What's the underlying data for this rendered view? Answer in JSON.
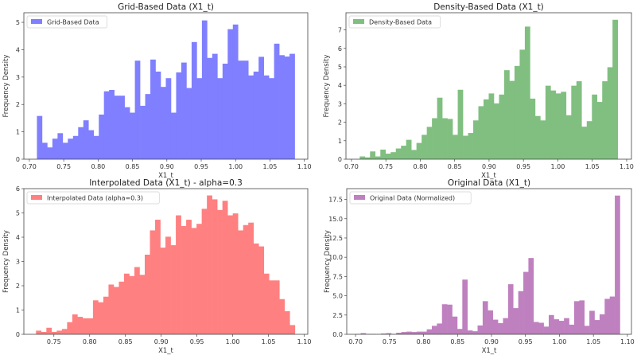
{
  "chart_data": [
    {
      "type": "bar",
      "title": "Grid-Based Data (X1_t)",
      "xlabel": "X1_t",
      "ylabel": "Frequency Density",
      "legend": "Grid-Based Data",
      "legend_placement": "top-left",
      "color": "#7f7fff",
      "bin_range": [
        0.711,
        1.086
      ],
      "xlim": [
        0.692,
        1.105
      ],
      "ylim": [
        0,
        5.35
      ],
      "xticks": [
        "0.70",
        "0.75",
        "0.80",
        "0.85",
        "0.90",
        "0.95",
        "1.00",
        "1.05",
        "1.10"
      ],
      "yticks": [
        "0",
        "1",
        "2",
        "3",
        "4",
        "5"
      ],
      "values": [
        1.58,
        0.6,
        0.43,
        0.75,
        0.95,
        0.6,
        0.75,
        0.85,
        1.17,
        1.42,
        1.06,
        0.85,
        1.63,
        2.48,
        2.53,
        2.32,
        2.32,
        1.9,
        1.7,
        3.6,
        1.95,
        2.38,
        3.64,
        3.2,
        2.64,
        2.96,
        1.7,
        3.17,
        3.53,
        2.6,
        4.28,
        2.96,
        5.07,
        3.7,
        3.85,
        2.96,
        3.49,
        4.75,
        4.92,
        3.6,
        3.6,
        3.06,
        3.2,
        3.74,
        3.06,
        2.96,
        4.22,
        3.8,
        3.75,
        3.85
      ]
    },
    {
      "type": "bar",
      "title": "Density-Based Data (X1_t)",
      "xlabel": "X1_t",
      "ylabel": "Frequency Density",
      "legend": "Density-Based Data",
      "legend_placement": "top-left",
      "color": "#80bf80",
      "bin_range": [
        0.712,
        1.087
      ],
      "xlim": [
        0.692,
        1.107
      ],
      "ylim": [
        0,
        7.93
      ],
      "xticks": [
        "0.70",
        "0.75",
        "0.80",
        "0.85",
        "0.90",
        "0.95",
        "1.00",
        "1.05",
        "1.10"
      ],
      "yticks": [
        "0",
        "1",
        "2",
        "3",
        "4",
        "5",
        "6",
        "7"
      ],
      "values": [
        0.15,
        0.1,
        0.42,
        0.15,
        0.52,
        0.3,
        0.38,
        0.58,
        0.73,
        1.05,
        0.5,
        0.88,
        1.32,
        1.75,
        2.22,
        3.33,
        2.22,
        2.18,
        1.32,
        3.76,
        1.27,
        1.42,
        2.1,
        2.87,
        3.24,
        3.56,
        3.02,
        3.5,
        4.82,
        4.24,
        5.05,
        5.93,
        7.18,
        3.28,
        2.34,
        2.1,
        3.98,
        3.72,
        3.56,
        3.65,
        2.38,
        3.98,
        4.22,
        1.76,
        2.06,
        3.5,
        3.1,
        4.22,
        4.98,
        7.55
      ]
    },
    {
      "type": "bar",
      "title": "Interpolated Data (X1_t) - alpha=0.3",
      "xlabel": "X1_t",
      "ylabel": "Frequency Density",
      "legend": "Interpolated Data (alpha=0.3)",
      "legend_placement": "top-left",
      "color": "#ff8080",
      "bin_range": [
        0.725,
        1.087
      ],
      "xlim": [
        0.708,
        1.105
      ],
      "ylim": [
        0,
        6.0
      ],
      "xticks": [
        "0.75",
        "0.80",
        "0.85",
        "0.90",
        "0.95",
        "1.00",
        "1.05",
        "1.10"
      ],
      "yticks": [
        "0",
        "1",
        "2",
        "3",
        "4",
        "5",
        "6"
      ],
      "values": [
        0.15,
        0.1,
        0.27,
        0.1,
        0.15,
        0.22,
        0.5,
        0.82,
        0.72,
        0.66,
        0.66,
        1.4,
        1.32,
        1.55,
        2.05,
        1.95,
        2.17,
        2.5,
        2.4,
        2.77,
        2.45,
        3.28,
        4.28,
        4.72,
        3.57,
        4.02,
        3.67,
        4.9,
        4.46,
        4.72,
        4.38,
        4.55,
        5.17,
        5.72,
        5.56,
        5.12,
        5.5,
        4.9,
        4.98,
        4.28,
        4.5,
        4.6,
        3.74,
        3.62,
        2.5,
        2.22,
        2.22,
        1.45,
        0.95,
        0.38
      ]
    },
    {
      "type": "bar",
      "title": "Original Data (X1_t)",
      "xlabel": "X1_t",
      "ylabel": "Frequency Density",
      "legend": "Original Data (Normalized)",
      "legend_placement": "top-left",
      "color": "#bf80bf",
      "bin_range": [
        0.7,
        1.089
      ],
      "xlim": [
        0.687,
        1.106
      ],
      "ylim": [
        0,
        18.9
      ],
      "xticks": [
        "0.70",
        "0.75",
        "0.80",
        "0.85",
        "0.90",
        "0.95",
        "1.00",
        "1.05",
        "1.10"
      ],
      "yticks": [
        "0.0",
        "2.5",
        "5.0",
        "7.5",
        "10.0",
        "12.5",
        "15.0",
        "17.5"
      ],
      "values": [
        0.05,
        0.15,
        0.05,
        0.05,
        0.02,
        0.1,
        0.15,
        0.05,
        0.2,
        0.3,
        0.35,
        0.3,
        0.35,
        0.35,
        0.65,
        1.1,
        1.4,
        3.9,
        3.85,
        2.3,
        0.7,
        7.1,
        0.5,
        0.4,
        1.15,
        4.3,
        3.1,
        1.9,
        1.45,
        2.1,
        6.5,
        3.4,
        5.6,
        8.1,
        9.9,
        1.6,
        1.5,
        1.0,
        2.5,
        1.95,
        1.75,
        2.1,
        1.25,
        4.3,
        4.4,
        1.1,
        3.05,
        1.85,
        2.6,
        4.6,
        4.9,
        18.0
      ]
    }
  ]
}
